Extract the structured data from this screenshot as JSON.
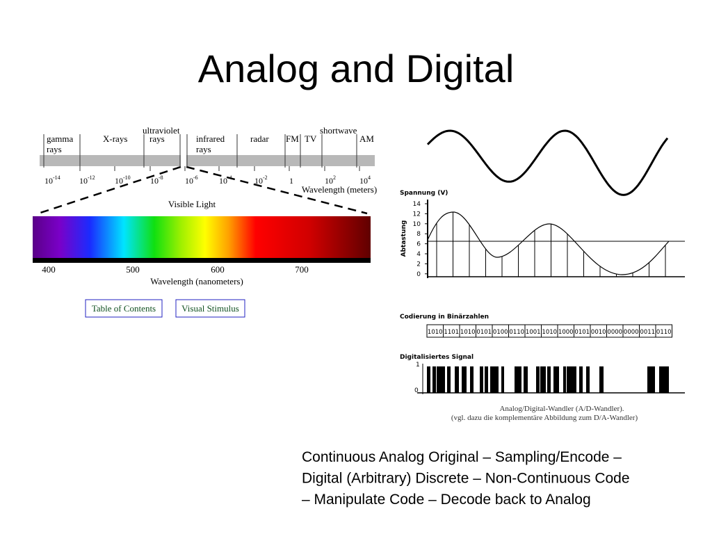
{
  "header": {
    "title": "Analog and Digital"
  },
  "spectrum": {
    "bands": [
      {
        "lines": [
          "gamma",
          "rays"
        ]
      },
      {
        "lines": [
          "X-rays"
        ]
      },
      {
        "lines": [
          "ultraviolet",
          "rays"
        ]
      },
      {
        "lines": [
          "infrared",
          "rays"
        ]
      },
      {
        "lines": [
          "radar"
        ]
      },
      {
        "lines": [
          "FM"
        ]
      },
      {
        "lines": [
          "TV"
        ]
      },
      {
        "lines": [
          "shortwave"
        ]
      },
      {
        "lines": [
          "AM"
        ]
      }
    ],
    "scale": [
      {
        "base": "10",
        "exp": "-14"
      },
      {
        "base": "10",
        "exp": "-12"
      },
      {
        "base": "10",
        "exp": "-10"
      },
      {
        "base": "10",
        "exp": "-8"
      },
      {
        "base": "10",
        "exp": "-6"
      },
      {
        "base": "10",
        "exp": "-4"
      },
      {
        "base": "10",
        "exp": "-2"
      },
      {
        "base": "1",
        "exp": ""
      },
      {
        "base": "10",
        "exp": "2"
      },
      {
        "base": "10",
        "exp": "4"
      }
    ],
    "axis_label": "Wavelength (meters)"
  },
  "visible": {
    "title": "Visible Light",
    "ticks": [
      "400",
      "500",
      "600",
      "700"
    ],
    "axis_label": "Wavelength (nanometers)"
  },
  "links": [
    "Table of Contents",
    "Visual Stimulus"
  ],
  "adc": {
    "sampling_title": "Spannung (V)",
    "sampling_side_label": "Abtastung",
    "sampling_yticks": [
      "14",
      "12",
      "10",
      "8",
      "6",
      "4",
      "2",
      "0"
    ],
    "encoding_title": "Codierung in Binärzahlen",
    "codes": [
      "1010",
      "1101",
      "1010",
      "0101",
      "0100",
      "0110",
      "1001",
      "1010",
      "1000",
      "0101",
      "0010",
      "0000",
      "0000",
      "0011",
      "0110"
    ],
    "signal_title": "Digitalisiertes Signal",
    "signal_levels": [
      "1",
      "0"
    ],
    "caption": [
      "Analog/Digital-Wandler (A/D-Wandler).",
      "(vgl. dazu die komplementäre Abbildung zum D/A-Wandler)"
    ]
  },
  "caption": [
    "Continuous Analog Original – Sampling/Encode –",
    "Digital (Arbitrary) Discrete – Non-Continuous Code",
    "– Manipulate Code – Decode back to Analog"
  ]
}
